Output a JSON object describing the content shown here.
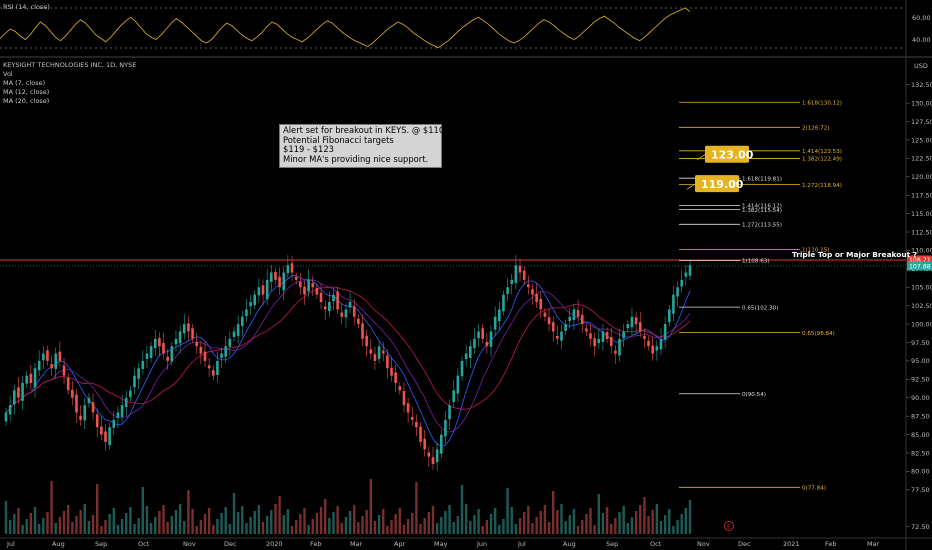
{
  "rsi_panel": {
    "label": "RSI (14, close)",
    "ticks": [
      "60.00",
      "40.00"
    ],
    "values": [
      44,
      48,
      52,
      50,
      46,
      43,
      47,
      53,
      58,
      55,
      50,
      45,
      42,
      46,
      51,
      56,
      60,
      57,
      52,
      47,
      44,
      41,
      45,
      50,
      55,
      59,
      62,
      58,
      53,
      48,
      45,
      43,
      47,
      52,
      57,
      61,
      58,
      54,
      50,
      46,
      42,
      40,
      43,
      48,
      53,
      57,
      55,
      51,
      47,
      44,
      42,
      45,
      49,
      54,
      58,
      56,
      52,
      48,
      45,
      43,
      41,
      44,
      48,
      52,
      56,
      59,
      57,
      53,
      49,
      46,
      43,
      41,
      39,
      37,
      40,
      44,
      48,
      52,
      55,
      58,
      56,
      53,
      49,
      46,
      43,
      40,
      38,
      36,
      39,
      42,
      46,
      50,
      54,
      57,
      60,
      62,
      59,
      56,
      52,
      48,
      45,
      42,
      40,
      42,
      45,
      49,
      53,
      57,
      60,
      58,
      55,
      51,
      48,
      45,
      43,
      46,
      50,
      54,
      58,
      61,
      63,
      60,
      57,
      53,
      50,
      47,
      44,
      42,
      45,
      49,
      53,
      57,
      61,
      64,
      66,
      68,
      70,
      67
    ]
  },
  "header": {
    "title": "KEYSIGHT TECHNOLOGIES INC, 1D, NYSE",
    "indicators": [
      "Vol",
      "MA (7, close)",
      "MA (12, close)",
      "MA (20, close)"
    ]
  },
  "currency": "USD",
  "annotation": {
    "lines": [
      "Alert set for breakout in KEYS. @ $110",
      "Potential Fibonacci targets",
      "$119 - $123",
      "Minor MA's providing nice support."
    ]
  },
  "callouts": [
    {
      "text": "123.00",
      "value": 123.0
    },
    {
      "text": "119.00",
      "value": 119.0
    }
  ],
  "breakout_label": "Triple Top or Major Breakout ?",
  "chart_data": {
    "type": "candlestick",
    "x_labels": [
      "Jul",
      "Aug",
      "Sep",
      "Oct",
      "Nov",
      "Dec",
      "2020",
      "Feb",
      "Mar",
      "Apr",
      "May",
      "Jun",
      "Jul",
      "Aug",
      "Sep",
      "Oct",
      "Nov",
      "Dec",
      "2021",
      "Feb",
      "Mar"
    ],
    "y_ticks": [
      132.5,
      130.0,
      127.5,
      125.0,
      122.5,
      120.0,
      117.5,
      115.0,
      112.5,
      110.0,
      107.5,
      105.0,
      102.5,
      100.0,
      97.5,
      95.0,
      92.5,
      90.0,
      87.5,
      85.0,
      82.5,
      80.0,
      77.5,
      72.5
    ],
    "y_range": [
      71.5,
      134.5
    ],
    "price_labels": [
      {
        "text": "108.71",
        "value": 108.71,
        "color": "#e53935"
      },
      {
        "text": "107.88",
        "value": 107.88,
        "color": "#26a69a"
      }
    ],
    "resistance_level": 108.71,
    "fib_levels": [
      {
        "label": "1.618(130.12)",
        "value": 130.12
      },
      {
        "label": "2(126.72)",
        "value": 126.72
      },
      {
        "label": "1.414(123.53)",
        "value": 123.53
      },
      {
        "label": "1.382(122.49)",
        "value": 122.49
      },
      {
        "label": "1.272(118.94)",
        "value": 118.94
      },
      {
        "label": "1.618(119.81)",
        "value": 119.81
      },
      {
        "label": "1.414(116.12)",
        "value": 116.12
      },
      {
        "label": "1.382(115.54)",
        "value": 115.54
      },
      {
        "label": "1.272(113.55)",
        "value": 113.55
      },
      {
        "label": "1(110.15)",
        "value": 110.15
      },
      {
        "label": "1(108.63)",
        "value": 108.63
      },
      {
        "label": "0.65(102.30)",
        "value": 102.3
      },
      {
        "label": "0.65(98.84)",
        "value": 98.84
      },
      {
        "label": "0(90.54)",
        "value": 90.54
      },
      {
        "label": "0(77.84)",
        "value": 77.84
      }
    ],
    "close": [
      88,
      89,
      91,
      90,
      92,
      93,
      92,
      94,
      95,
      96,
      95,
      94,
      96,
      95,
      93,
      91,
      90,
      88,
      87,
      89,
      90,
      88,
      86,
      85,
      84,
      86,
      87,
      88,
      89,
      90,
      91,
      93,
      94,
      95,
      96,
      97,
      98,
      97,
      96,
      95,
      97,
      98,
      99,
      100,
      99,
      98,
      97,
      96,
      95,
      94,
      93,
      95,
      96,
      97,
      98,
      99,
      100,
      101,
      102,
      103,
      104,
      105,
      104,
      106,
      107,
      106,
      105,
      107,
      108,
      107,
      106,
      105,
      104,
      106,
      105,
      104,
      103,
      102,
      103,
      104,
      102,
      101,
      102,
      103,
      101,
      100,
      98,
      97,
      96,
      95,
      97,
      96,
      94,
      93,
      92,
      91,
      89,
      88,
      87,
      86,
      84,
      83,
      82,
      81,
      83,
      85,
      87,
      89,
      91,
      93,
      95,
      96,
      97,
      98,
      99,
      98,
      97,
      99,
      101,
      102,
      104,
      105,
      106,
      108,
      107,
      106,
      105,
      104,
      103,
      102,
      101,
      100,
      99,
      98,
      99,
      100,
      101,
      102,
      101,
      100,
      99,
      98,
      97,
      98,
      99,
      98,
      97,
      96,
      98,
      99,
      100,
      101,
      100,
      99,
      98,
      97,
      96,
      97,
      98,
      100,
      102,
      104,
      105,
      106,
      107,
      108
    ]
  }
}
